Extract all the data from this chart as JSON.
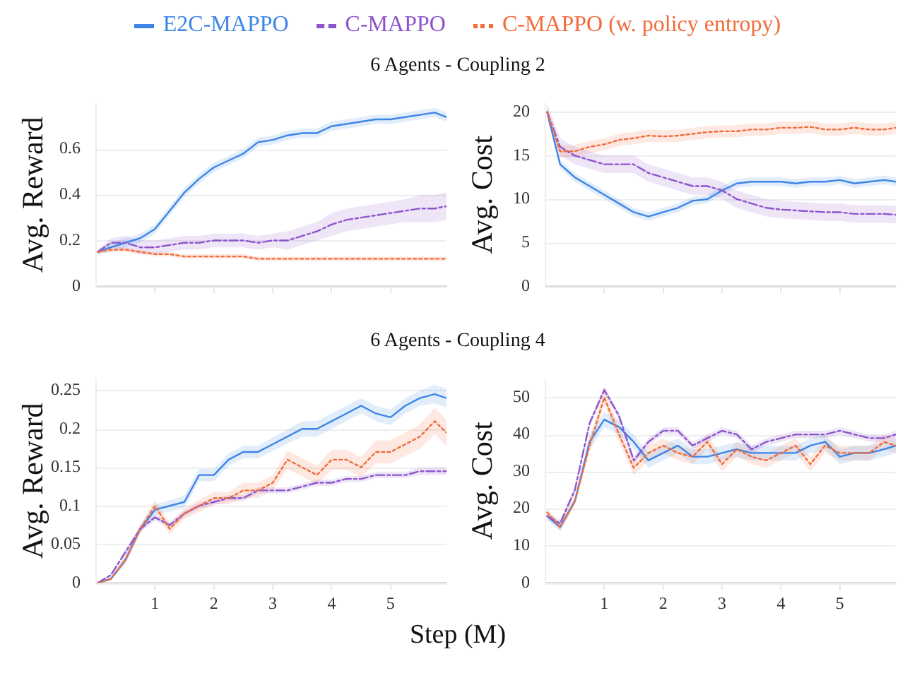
{
  "chart_data": [
    {
      "type": "line",
      "title": "6 Agents - Coupling 2",
      "ylabel": "Avg. Reward",
      "legend": "top",
      "grid": "y",
      "tick_labels": "y",
      "x": [
        0.03,
        0.25,
        0.5,
        0.75,
        1.0,
        1.25,
        1.5,
        1.75,
        2.0,
        2.25,
        2.5,
        2.75,
        3.0,
        3.25,
        3.5,
        3.75,
        4.0,
        4.25,
        4.5,
        4.75,
        5.0,
        5.25,
        5.5,
        5.75,
        5.95
      ],
      "xlim": [
        0,
        5.95
      ],
      "xticks": [
        {
          "value": 1,
          "label": null
        },
        {
          "value": 2,
          "label": null
        },
        {
          "value": 3,
          "label": null
        },
        {
          "value": 4,
          "label": null
        },
        {
          "value": 5,
          "label": null
        }
      ],
      "ylim": [
        0,
        0.8
      ],
      "yticks": [
        0,
        0.2,
        0.4,
        0.6
      ],
      "series": [
        {
          "name": "E2C-MAPPO",
          "color": "#3d85e6",
          "line_style": "solid",
          "values": [
            0.15,
            0.17,
            0.19,
            0.21,
            0.25,
            0.33,
            0.41,
            0.47,
            0.52,
            0.55,
            0.58,
            0.63,
            0.64,
            0.66,
            0.67,
            0.67,
            0.7,
            0.71,
            0.72,
            0.73,
            0.73,
            0.74,
            0.75,
            0.76,
            0.74
          ],
          "lower": [
            0.14,
            0.15,
            0.17,
            0.19,
            0.23,
            0.31,
            0.39,
            0.45,
            0.5,
            0.53,
            0.56,
            0.61,
            0.62,
            0.64,
            0.65,
            0.65,
            0.68,
            0.69,
            0.7,
            0.71,
            0.71,
            0.72,
            0.73,
            0.74,
            0.72
          ],
          "upper": [
            0.16,
            0.19,
            0.21,
            0.23,
            0.27,
            0.35,
            0.43,
            0.49,
            0.54,
            0.57,
            0.6,
            0.65,
            0.66,
            0.68,
            0.69,
            0.69,
            0.72,
            0.73,
            0.74,
            0.75,
            0.75,
            0.76,
            0.77,
            0.78,
            0.76
          ]
        },
        {
          "name": "C-MAPPO",
          "color": "#8d55cc",
          "line_style": "dashed",
          "values": [
            0.15,
            0.19,
            0.19,
            0.17,
            0.17,
            0.18,
            0.19,
            0.19,
            0.2,
            0.2,
            0.2,
            0.19,
            0.2,
            0.2,
            0.22,
            0.24,
            0.27,
            0.29,
            0.3,
            0.31,
            0.32,
            0.33,
            0.34,
            0.34,
            0.35
          ],
          "lower": [
            0.14,
            0.17,
            0.16,
            0.14,
            0.14,
            0.15,
            0.16,
            0.16,
            0.17,
            0.17,
            0.17,
            0.16,
            0.17,
            0.16,
            0.18,
            0.2,
            0.22,
            0.24,
            0.25,
            0.26,
            0.27,
            0.28,
            0.28,
            0.28,
            0.29
          ],
          "upper": [
            0.16,
            0.21,
            0.22,
            0.2,
            0.2,
            0.21,
            0.22,
            0.22,
            0.23,
            0.23,
            0.23,
            0.22,
            0.23,
            0.24,
            0.26,
            0.28,
            0.32,
            0.34,
            0.35,
            0.36,
            0.37,
            0.38,
            0.4,
            0.4,
            0.41
          ]
        },
        {
          "name": "C-MAPPO (w. policy entropy)",
          "color": "#f26b3a",
          "line_style": "dotted",
          "values": [
            0.15,
            0.16,
            0.16,
            0.15,
            0.14,
            0.14,
            0.13,
            0.13,
            0.13,
            0.13,
            0.13,
            0.12,
            0.12,
            0.12,
            0.12,
            0.12,
            0.12,
            0.12,
            0.12,
            0.12,
            0.12,
            0.12,
            0.12,
            0.12,
            0.12
          ],
          "lower": [
            0.14,
            0.15,
            0.15,
            0.14,
            0.13,
            0.13,
            0.12,
            0.12,
            0.12,
            0.12,
            0.12,
            0.11,
            0.11,
            0.11,
            0.11,
            0.11,
            0.11,
            0.11,
            0.11,
            0.11,
            0.11,
            0.11,
            0.11,
            0.11,
            0.11
          ],
          "upper": [
            0.16,
            0.17,
            0.17,
            0.16,
            0.15,
            0.15,
            0.14,
            0.14,
            0.14,
            0.14,
            0.14,
            0.13,
            0.13,
            0.13,
            0.13,
            0.13,
            0.13,
            0.13,
            0.13,
            0.13,
            0.13,
            0.13,
            0.13,
            0.13,
            0.13
          ]
        }
      ]
    },
    {
      "type": "line",
      "ylabel": "Avg. Cost",
      "grid": "y",
      "tick_labels": "y",
      "x": [
        0.03,
        0.25,
        0.5,
        0.75,
        1.0,
        1.25,
        1.5,
        1.75,
        2.0,
        2.25,
        2.5,
        2.75,
        3.0,
        3.25,
        3.5,
        3.75,
        4.0,
        4.25,
        4.5,
        4.75,
        5.0,
        5.25,
        5.5,
        5.75,
        5.95
      ],
      "xlim": [
        0,
        5.95
      ],
      "xticks": [
        {
          "value": 1,
          "label": null
        },
        {
          "value": 2,
          "label": null
        },
        {
          "value": 3,
          "label": null
        },
        {
          "value": 4,
          "label": null
        },
        {
          "value": 5,
          "label": null
        }
      ],
      "ylim": [
        0,
        21
      ],
      "yticks": [
        0,
        5,
        10,
        15,
        20
      ],
      "series": [
        {
          "color": "#3d85e6",
          "line_style": "solid",
          "values": [
            20,
            14,
            12.5,
            11.5,
            10.5,
            9.5,
            8.5,
            8,
            8.5,
            9,
            9.8,
            10,
            11,
            11.8,
            12,
            12,
            12,
            11.8,
            12,
            12,
            12.2,
            11.8,
            12,
            12.2,
            12
          ],
          "lower": [
            19.5,
            13.5,
            12,
            11,
            10,
            9,
            8,
            7.5,
            8,
            8.5,
            9.3,
            9.5,
            10.5,
            11.3,
            11.5,
            11.5,
            11.5,
            11.3,
            11.5,
            11.5,
            11.7,
            11.3,
            11.5,
            11.7,
            11.5
          ],
          "upper": [
            20.5,
            14.5,
            13,
            12,
            11,
            10,
            9,
            8.5,
            9,
            9.5,
            10.3,
            10.5,
            11.5,
            12.3,
            12.5,
            12.5,
            12.5,
            12.3,
            12.5,
            12.5,
            12.7,
            12.3,
            12.5,
            12.7,
            12.5
          ]
        },
        {
          "color": "#8d55cc",
          "line_style": "dashed",
          "values": [
            20,
            16,
            15,
            14.5,
            14,
            14,
            14,
            13,
            12.5,
            12,
            11.5,
            11.5,
            11,
            10,
            9.5,
            9,
            8.8,
            8.7,
            8.6,
            8.5,
            8.5,
            8.3,
            8.3,
            8.3,
            8.2
          ],
          "lower": [
            19,
            15,
            14,
            13.5,
            13,
            13,
            13,
            12,
            11.5,
            11,
            10.5,
            10.5,
            10,
            9,
            8.5,
            8,
            7.8,
            7.7,
            7.6,
            7.5,
            7.5,
            7.3,
            7.3,
            7.3,
            7.2
          ],
          "upper": [
            21,
            17,
            16,
            15.5,
            15,
            15,
            15,
            14,
            13.5,
            13,
            12.5,
            12.5,
            12,
            11,
            10.5,
            10,
            9.8,
            9.7,
            9.6,
            9.5,
            9.5,
            9.3,
            9.3,
            9.3,
            9.2
          ]
        },
        {
          "color": "#f26b3a",
          "line_style": "dotted",
          "values": [
            20,
            15.5,
            15.5,
            16,
            16.3,
            16.8,
            17,
            17.3,
            17.2,
            17.3,
            17.5,
            17.7,
            17.8,
            17.8,
            18,
            18,
            18.2,
            18.2,
            18.3,
            18,
            18,
            18.2,
            18,
            18,
            18.2
          ],
          "lower": [
            19.3,
            14.8,
            14.8,
            15.3,
            15.6,
            16.1,
            16.3,
            16.6,
            16.5,
            16.6,
            16.8,
            17,
            17.1,
            17.1,
            17.3,
            17.3,
            17.5,
            17.5,
            17.6,
            17.3,
            17.3,
            17.5,
            17.3,
            17.3,
            17.5
          ],
          "upper": [
            20.7,
            16.2,
            16.2,
            16.7,
            17,
            17.5,
            17.7,
            18,
            17.9,
            18,
            18.2,
            18.4,
            18.5,
            18.5,
            18.7,
            18.7,
            18.9,
            18.9,
            19,
            18.7,
            18.7,
            18.9,
            18.7,
            18.7,
            18.9
          ]
        }
      ]
    },
    {
      "type": "line",
      "title": "6 Agents - Coupling 4",
      "xlabel": "Step (M)",
      "ylabel": "Avg. Reward",
      "grid": "y",
      "x": [
        0.03,
        0.25,
        0.5,
        0.75,
        1.0,
        1.25,
        1.5,
        1.75,
        2.0,
        2.25,
        2.5,
        2.75,
        3.0,
        3.25,
        3.5,
        3.75,
        4.0,
        4.25,
        4.5,
        4.75,
        5.0,
        5.25,
        5.5,
        5.75,
        5.95
      ],
      "xlim": [
        0,
        5.95
      ],
      "xticks": [
        1,
        2,
        3,
        4,
        5
      ],
      "ylim": [
        0,
        0.265
      ],
      "yticks": [
        0,
        0.05,
        0.1,
        0.15,
        0.2,
        0.25
      ],
      "series": [
        {
          "color": "#3d85e6",
          "line_style": "solid",
          "values": [
            0,
            0.005,
            0.03,
            0.07,
            0.095,
            0.1,
            0.105,
            0.14,
            0.14,
            0.16,
            0.17,
            0.17,
            0.18,
            0.19,
            0.2,
            0.2,
            0.21,
            0.22,
            0.23,
            0.22,
            0.215,
            0.23,
            0.24,
            0.245,
            0.24
          ],
          "lower": [
            0,
            0.003,
            0.025,
            0.065,
            0.088,
            0.093,
            0.097,
            0.132,
            0.132,
            0.152,
            0.162,
            0.162,
            0.171,
            0.181,
            0.19,
            0.19,
            0.2,
            0.21,
            0.22,
            0.21,
            0.205,
            0.22,
            0.23,
            0.233,
            0.228
          ],
          "upper": [
            0,
            0.007,
            0.035,
            0.075,
            0.102,
            0.107,
            0.113,
            0.148,
            0.148,
            0.168,
            0.178,
            0.178,
            0.189,
            0.199,
            0.21,
            0.21,
            0.22,
            0.23,
            0.24,
            0.23,
            0.225,
            0.24,
            0.25,
            0.257,
            0.252
          ]
        },
        {
          "color": "#8d55cc",
          "line_style": "dashed",
          "values": [
            0,
            0.01,
            0.04,
            0.07,
            0.085,
            0.075,
            0.09,
            0.1,
            0.105,
            0.11,
            0.11,
            0.12,
            0.12,
            0.12,
            0.125,
            0.13,
            0.13,
            0.135,
            0.135,
            0.14,
            0.14,
            0.14,
            0.145,
            0.145,
            0.145
          ],
          "lower": [
            0,
            0.008,
            0.036,
            0.066,
            0.081,
            0.071,
            0.086,
            0.096,
            0.101,
            0.106,
            0.106,
            0.116,
            0.116,
            0.116,
            0.121,
            0.126,
            0.126,
            0.131,
            0.131,
            0.136,
            0.136,
            0.136,
            0.14,
            0.14,
            0.14
          ],
          "upper": [
            0,
            0.012,
            0.044,
            0.074,
            0.089,
            0.079,
            0.094,
            0.104,
            0.109,
            0.114,
            0.114,
            0.124,
            0.124,
            0.124,
            0.129,
            0.134,
            0.134,
            0.139,
            0.139,
            0.144,
            0.144,
            0.144,
            0.15,
            0.15,
            0.15
          ]
        },
        {
          "color": "#f26b3a",
          "line_style": "dotted",
          "values": [
            0,
            0.005,
            0.03,
            0.07,
            0.1,
            0.07,
            0.09,
            0.1,
            0.11,
            0.11,
            0.12,
            0.12,
            0.13,
            0.16,
            0.15,
            0.14,
            0.16,
            0.16,
            0.15,
            0.17,
            0.17,
            0.18,
            0.19,
            0.21,
            0.195
          ],
          "lower": [
            0,
            0.003,
            0.025,
            0.064,
            0.092,
            0.063,
            0.083,
            0.092,
            0.102,
            0.102,
            0.11,
            0.11,
            0.12,
            0.148,
            0.138,
            0.128,
            0.147,
            0.147,
            0.137,
            0.155,
            0.155,
            0.165,
            0.174,
            0.193,
            0.178
          ],
          "upper": [
            0,
            0.007,
            0.035,
            0.076,
            0.108,
            0.077,
            0.097,
            0.108,
            0.118,
            0.118,
            0.13,
            0.13,
            0.14,
            0.172,
            0.162,
            0.152,
            0.173,
            0.173,
            0.163,
            0.185,
            0.185,
            0.195,
            0.206,
            0.227,
            0.212
          ]
        }
      ]
    },
    {
      "type": "line",
      "ylabel": "Avg. Cost",
      "grid": "y",
      "x": [
        0.03,
        0.25,
        0.5,
        0.75,
        1.0,
        1.25,
        1.5,
        1.75,
        2.0,
        2.25,
        2.5,
        2.75,
        3.0,
        3.25,
        3.5,
        3.75,
        4.0,
        4.25,
        4.5,
        4.75,
        5.0,
        5.25,
        5.5,
        5.75,
        5.95
      ],
      "xlim": [
        0,
        5.95
      ],
      "xticks": [
        1,
        2,
        3,
        4,
        5
      ],
      "ylim": [
        0,
        55
      ],
      "yticks": [
        0,
        10,
        20,
        30,
        40,
        50
      ],
      "series": [
        {
          "color": "#3d85e6",
          "line_style": "solid",
          "values": [
            18,
            15,
            22,
            38,
            44,
            42,
            38,
            33,
            35,
            37,
            34,
            34,
            35,
            36,
            35,
            35,
            35,
            35,
            37,
            38,
            34,
            35,
            35,
            36,
            37
          ],
          "lower": [
            17,
            14,
            21,
            36,
            42,
            40,
            36,
            31,
            33,
            35,
            32,
            32,
            33,
            34,
            33,
            33,
            33,
            33,
            35,
            36,
            32,
            33,
            33,
            34,
            35
          ],
          "upper": [
            19,
            16,
            23,
            40,
            46,
            44,
            40,
            35,
            37,
            39,
            36,
            36,
            37,
            38,
            37,
            37,
            37,
            37,
            39,
            40,
            36,
            37,
            37,
            38,
            39
          ]
        },
        {
          "color": "#8d55cc",
          "line_style": "dashed",
          "values": [
            18,
            16,
            25,
            43,
            52,
            45,
            33,
            38,
            41,
            41,
            37,
            39,
            41,
            40,
            36,
            38,
            39,
            40,
            40,
            40,
            41,
            40,
            39,
            39,
            40
          ],
          "lower": [
            17,
            15,
            24,
            42,
            51,
            44,
            32,
            37,
            40,
            40,
            36,
            38,
            40,
            39,
            35,
            37,
            38,
            39,
            39,
            39,
            40,
            39,
            38,
            38,
            39
          ],
          "upper": [
            19,
            17,
            26,
            44,
            53,
            46,
            34,
            39,
            42,
            42,
            38,
            40,
            42,
            41,
            37,
            39,
            40,
            41,
            41,
            41,
            42,
            41,
            40,
            40,
            41
          ]
        },
        {
          "color": "#f26b3a",
          "line_style": "dotted",
          "values": [
            19,
            15,
            22,
            37,
            50,
            40,
            31,
            35,
            37,
            35,
            34,
            38,
            32,
            36,
            34,
            33,
            35,
            37,
            32,
            37,
            35,
            35,
            35,
            38,
            37
          ],
          "lower": [
            18,
            14,
            21,
            35,
            48,
            38,
            29,
            33,
            35,
            33,
            32,
            36,
            30,
            34,
            32,
            31,
            33,
            35,
            30,
            35,
            33,
            33,
            33,
            36,
            35
          ],
          "upper": [
            20,
            16,
            23,
            39,
            52,
            42,
            33,
            37,
            39,
            37,
            36,
            40,
            34,
            38,
            36,
            35,
            37,
            39,
            34,
            39,
            37,
            37,
            37,
            40,
            39
          ]
        }
      ]
    }
  ]
}
